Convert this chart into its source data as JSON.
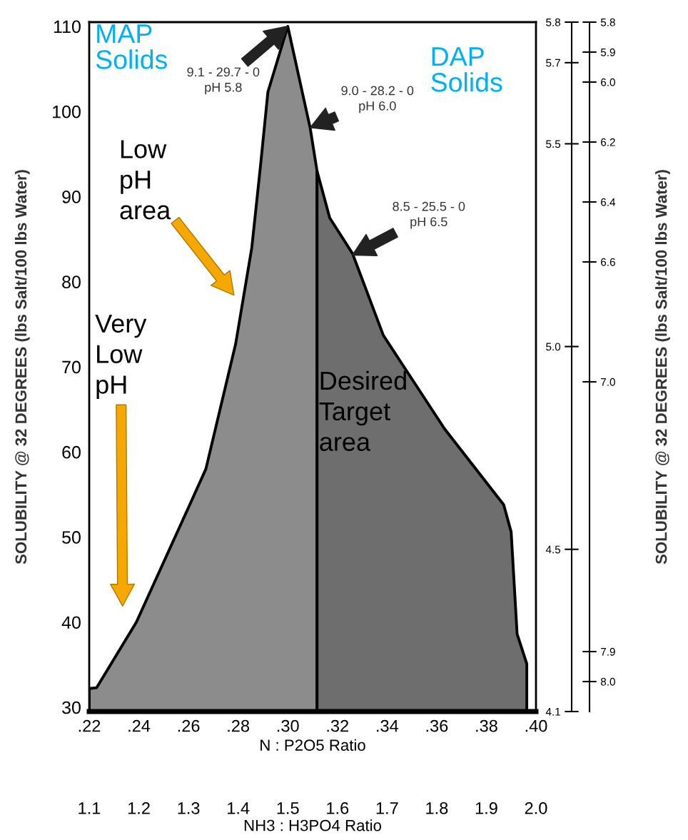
{
  "chart_data": {
    "type": "area",
    "xlabel": "N : P2O5 Ratio",
    "x2label": "NH3 : H3PO4 Ratio",
    "ylabel": "SOLUBILITY @ 32 DEGREES (lbs Salt/100 lbs Water)",
    "y3label": "SOLUBILITY @ 32 DEGREES (lbs Salt/100 lbs Water)",
    "series": [
      {
        "color": "#8c8c8c",
        "x": [
          0.22,
          0.223,
          0.239,
          0.2605,
          0.267,
          0.279,
          0.2855,
          0.289,
          0.292,
          0.3,
          0.309,
          0.3118
        ],
        "values": [
          32.2,
          32.3,
          40.0,
          53.8,
          58.0,
          72.7,
          84.0,
          93.6,
          102.3,
          110,
          98.1,
          93.0
        ]
      },
      {
        "color": "#6e6e6e",
        "x": [
          0.3118,
          0.3169,
          0.3261,
          0.3385,
          0.3632,
          0.387,
          0.39,
          0.3924,
          0.3963
        ],
        "values": [
          93.0,
          87.5,
          83.3,
          73.7,
          62.7,
          53.8,
          50.6,
          38.6,
          35.1
        ]
      }
    ],
    "xlim": [
      0.22,
      0.4
    ],
    "xticks": [
      {
        "value": 0.22,
        "label": ".22"
      },
      {
        "value": 0.24,
        "label": ".24"
      },
      {
        "value": 0.26,
        "label": ".26"
      },
      {
        "value": 0.28,
        "label": ".28"
      },
      {
        "value": 0.3,
        "label": ".30"
      },
      {
        "value": 0.32,
        "label": ".32"
      },
      {
        "value": 0.34,
        "label": ".34"
      },
      {
        "value": 0.36,
        "label": ".36"
      },
      {
        "value": 0.38,
        "label": ".38"
      },
      {
        "value": 0.4,
        "label": ".40"
      }
    ],
    "x2lim": [
      1.1,
      2.0
    ],
    "x2ticks": [
      1.1,
      1.2,
      1.3,
      1.4,
      1.5,
      1.6,
      1.7,
      1.8,
      1.9,
      {
        "value": 2.0,
        "label": "2.0"
      }
    ],
    "ylim": [
      29.5,
      110.5
    ],
    "yticks": [
      30,
      40,
      50,
      60,
      70,
      80,
      90,
      100,
      110
    ],
    "y2lim": [
      4.1,
      5.8
    ],
    "y2ticks": [
      5.8,
      5.7,
      5.5,
      {
        "value": 5.0,
        "label": "5.0"
      },
      4.5,
      4.1
    ],
    "y3lim": [
      8.1,
      5.8
    ],
    "y3ticks": [
      5.8,
      5.9,
      {
        "value": 6.0,
        "label": "6.0"
      },
      6.2,
      6.4,
      6.6,
      {
        "value": 7.0,
        "label": "7.0"
      },
      7.9,
      {
        "value": 8.0,
        "label": "8.0"
      }
    ],
    "annotations": [
      "MAP\nSolids",
      "9.1 - 29.7 - 0\npH 5.8",
      "DAP\nSolids",
      {
        "text": "9.0 - 28.2 - 0\npH 6.0",
        "x": 0.309,
        "y": 98.1
      },
      "8.5 - 25.5 - 0\npH 6.5",
      "Low\npH\narea",
      "Very\nLow\npH",
      "Desired\nTarget\narea"
    ],
    "grid": false,
    "legend": false
  }
}
